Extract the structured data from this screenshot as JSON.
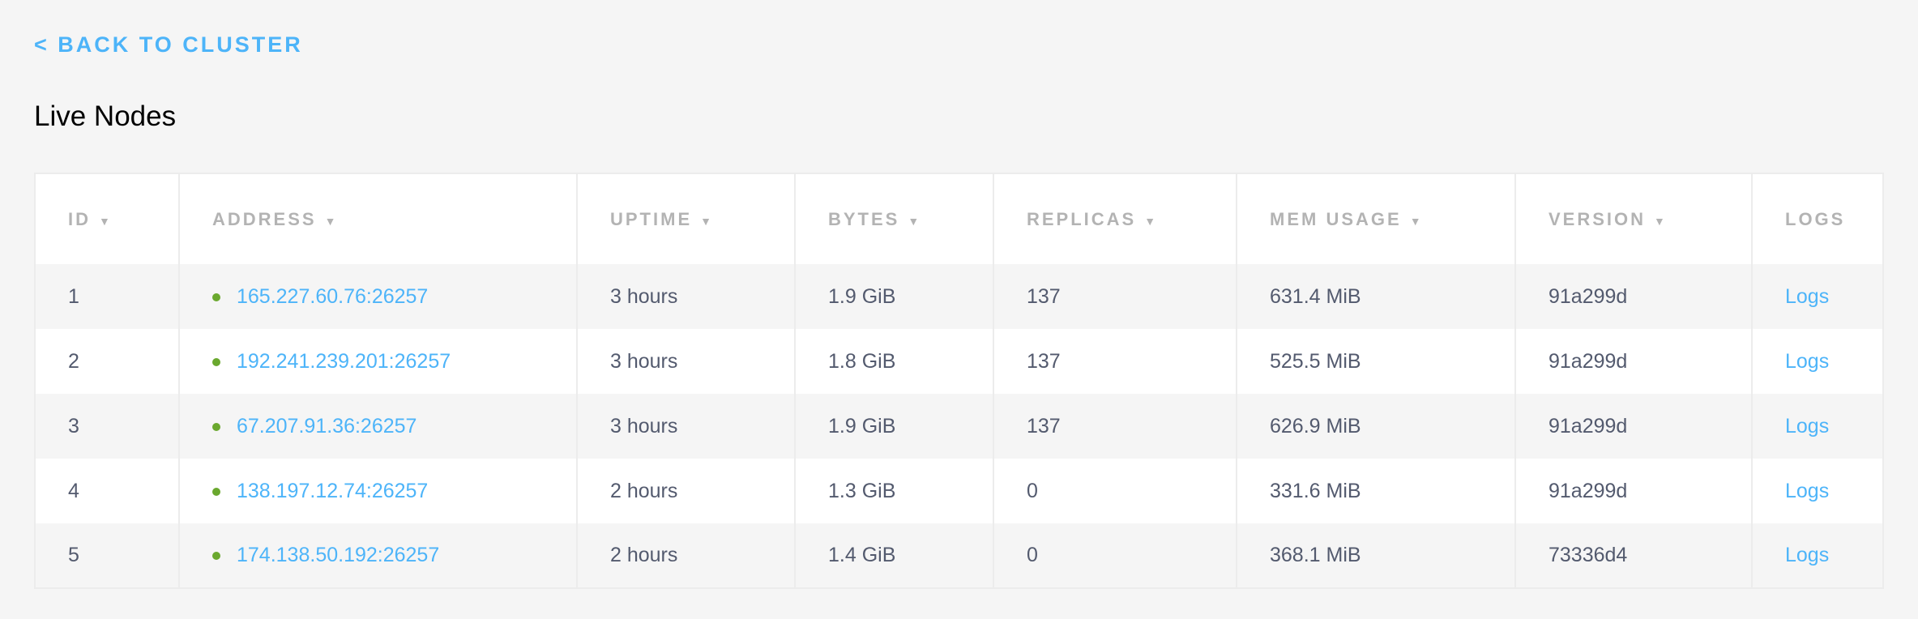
{
  "nav": {
    "back_label": "< BACK TO CLUSTER"
  },
  "page": {
    "title": "Live Nodes"
  },
  "colors": {
    "link": "#4db4f9",
    "status_live": "#6aa82e",
    "header_text": "#b3b3b3",
    "cell_text": "#535a6e"
  },
  "table": {
    "columns": [
      {
        "label": "ID",
        "sortable": true
      },
      {
        "label": "ADDRESS",
        "sortable": true
      },
      {
        "label": "UPTIME",
        "sortable": true
      },
      {
        "label": "BYTES",
        "sortable": true
      },
      {
        "label": "REPLICAS",
        "sortable": true
      },
      {
        "label": "MEM USAGE",
        "sortable": true
      },
      {
        "label": "VERSION",
        "sortable": true
      },
      {
        "label": "LOGS",
        "sortable": false
      }
    ],
    "sort_icon": "triangle-down",
    "rows": [
      {
        "id": "1",
        "address": "165.227.60.76:26257",
        "uptime": "3 hours",
        "bytes": "1.9 GiB",
        "replicas": "137",
        "mem": "631.4 MiB",
        "version": "91a299d",
        "logs": "Logs"
      },
      {
        "id": "2",
        "address": "192.241.239.201:26257",
        "uptime": "3 hours",
        "bytes": "1.8 GiB",
        "replicas": "137",
        "mem": "525.5 MiB",
        "version": "91a299d",
        "logs": "Logs"
      },
      {
        "id": "3",
        "address": "67.207.91.36:26257",
        "uptime": "3 hours",
        "bytes": "1.9 GiB",
        "replicas": "137",
        "mem": "626.9 MiB",
        "version": "91a299d",
        "logs": "Logs"
      },
      {
        "id": "4",
        "address": "138.197.12.74:26257",
        "uptime": "2 hours",
        "bytes": "1.3 GiB",
        "replicas": "0",
        "mem": "331.6 MiB",
        "version": "91a299d",
        "logs": "Logs"
      },
      {
        "id": "5",
        "address": "174.138.50.192:26257",
        "uptime": "2 hours",
        "bytes": "1.4 GiB",
        "replicas": "0",
        "mem": "368.1 MiB",
        "version": "73336d4",
        "logs": "Logs"
      }
    ]
  }
}
